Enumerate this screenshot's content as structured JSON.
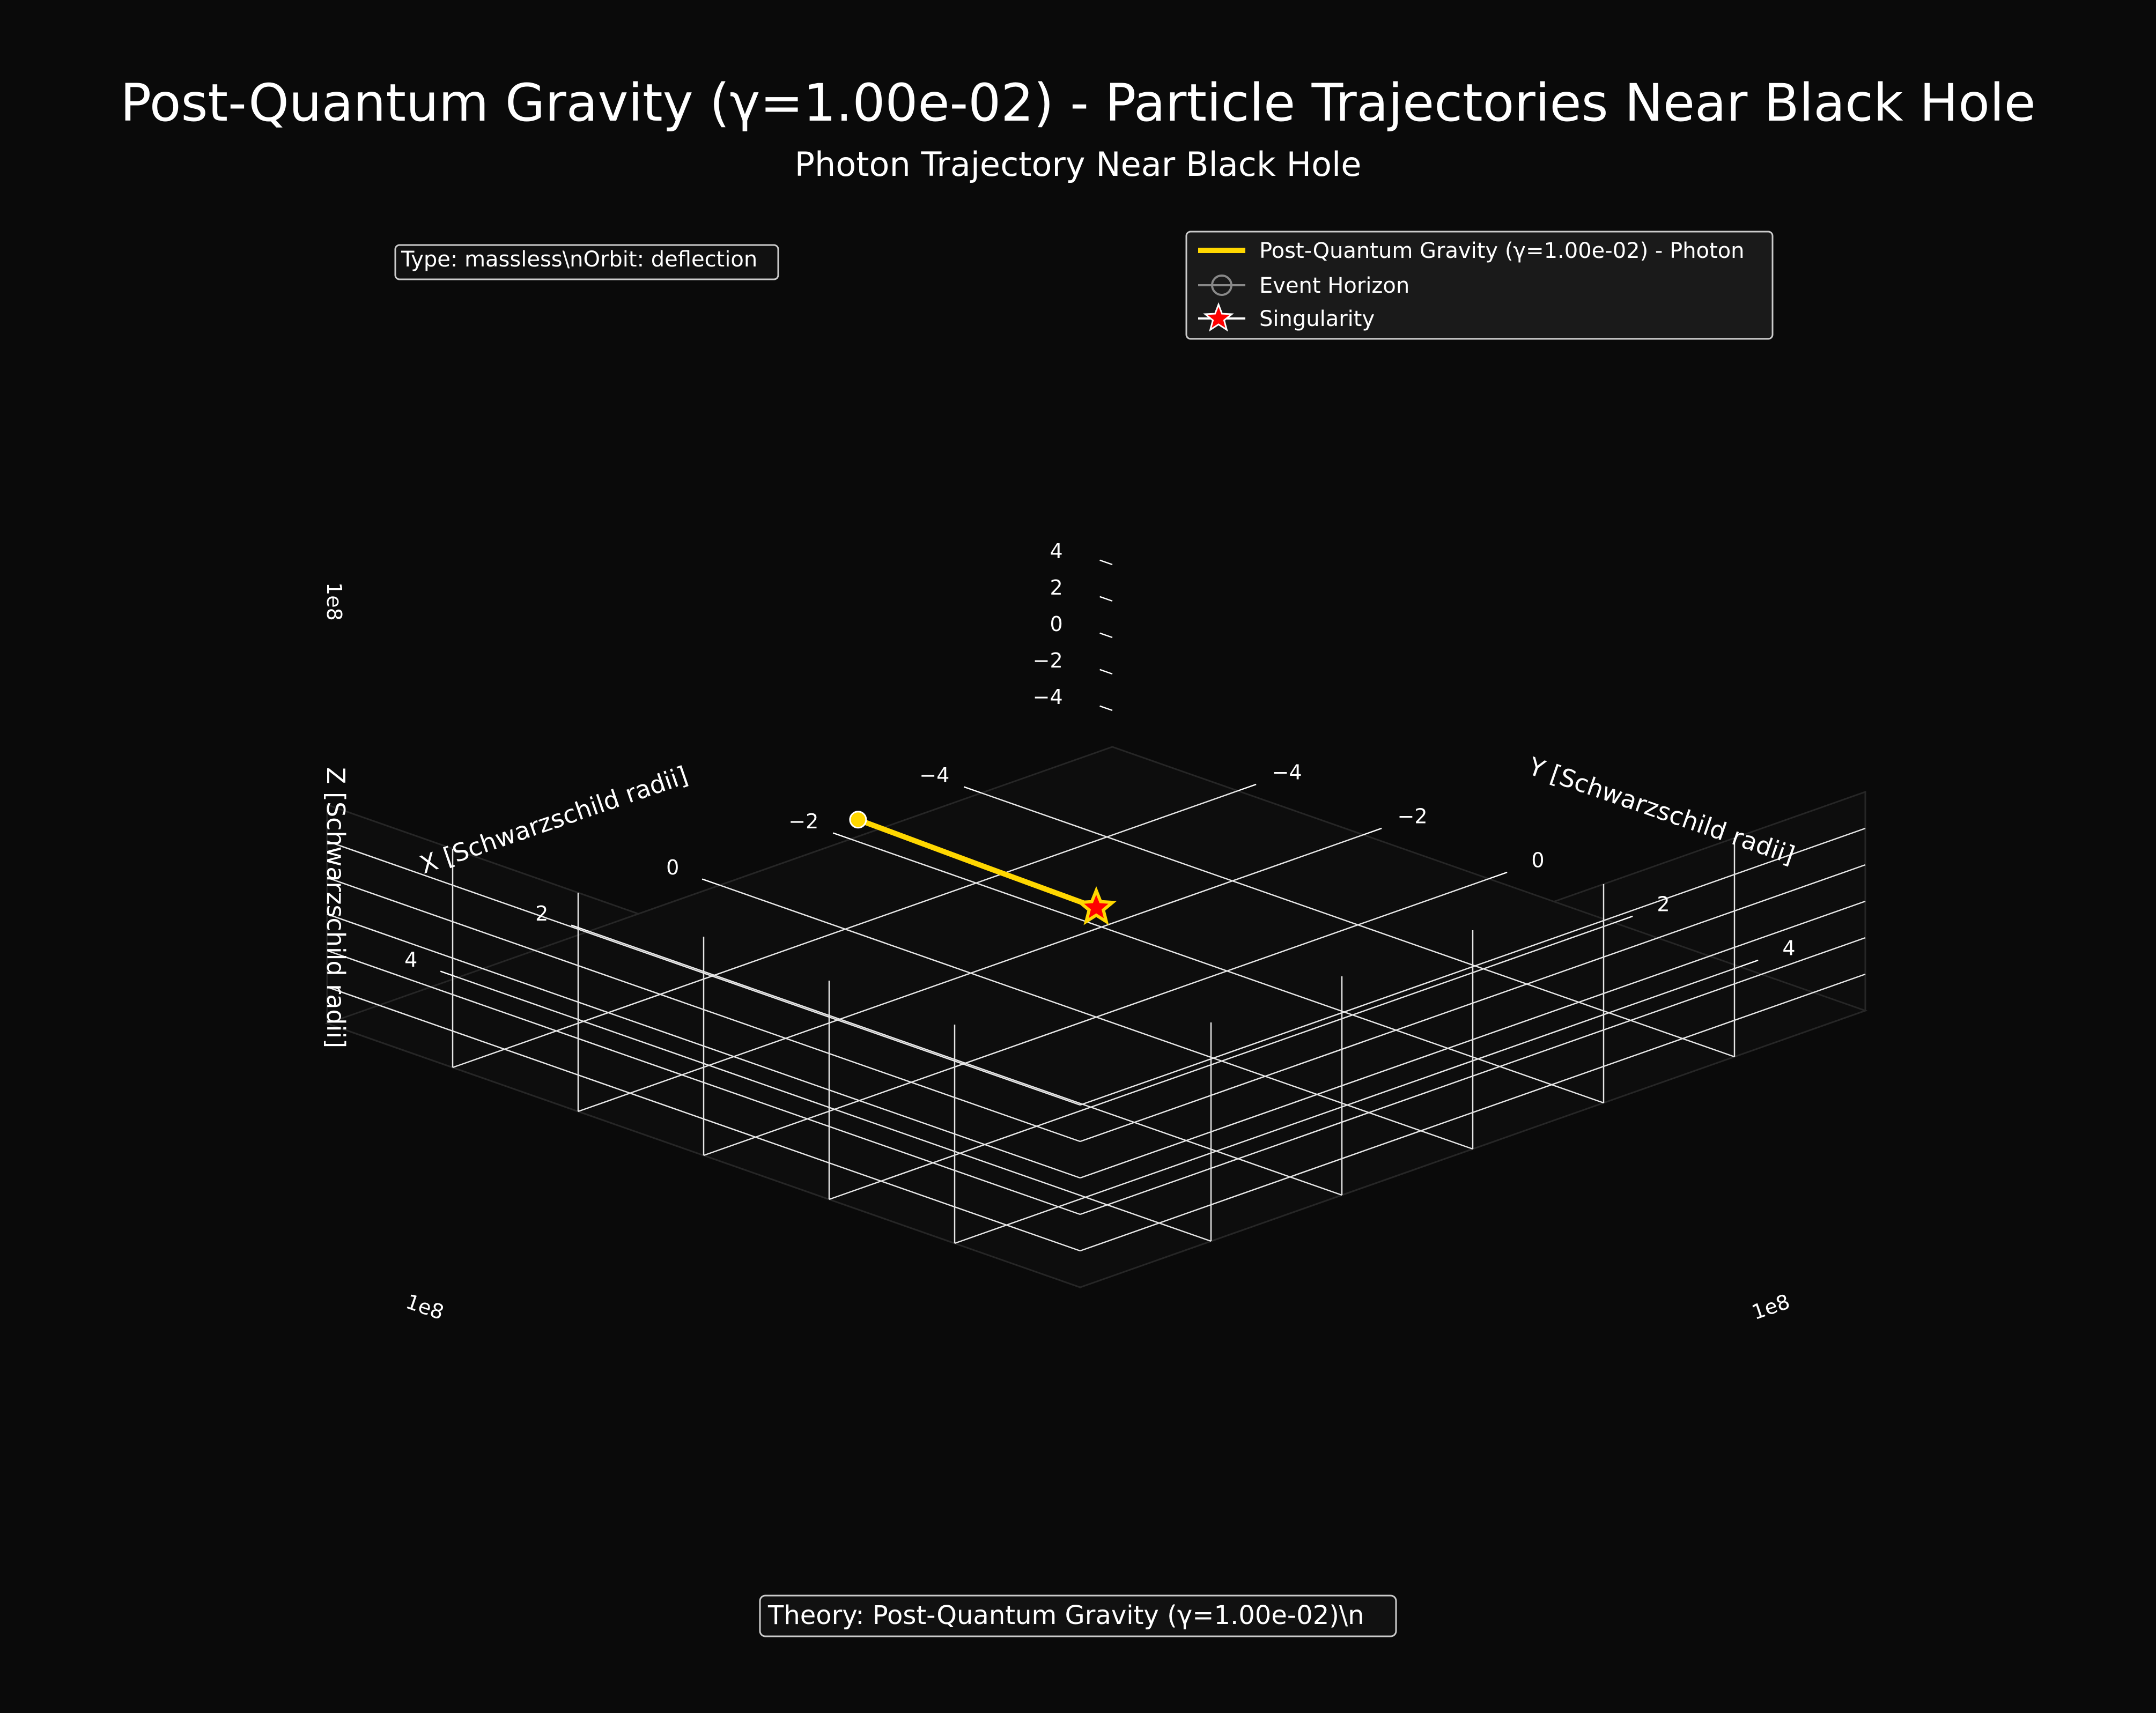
{
  "chart_data": {
    "type": "line3d",
    "title": "Post-Quantum Gravity (γ=1.00e-02) - Particle Trajectories Near Black Hole",
    "subtitle": "Photon Trajectory Near Black Hole",
    "xlabel": "X [Schwarzschild radii]",
    "ylabel": "Y [Schwarzschild radii]",
    "zlabel": "Z [Schwarzschild radii]",
    "x_ticks": [
      "−4",
      "−2",
      "0",
      "2",
      "4"
    ],
    "y_ticks": [
      "−4",
      "−2",
      "0",
      "2",
      "4"
    ],
    "z_ticks": [
      "−4",
      "−2",
      "0",
      "2",
      "4"
    ],
    "axis_multiplier": "1e8",
    "xlim": [
      -6,
      6
    ],
    "ylim": [
      -6,
      6
    ],
    "zlim": [
      -6,
      6
    ],
    "grid": true,
    "legend_position": "top-right",
    "series": [
      {
        "name": "Post-Quantum Gravity (γ=1.00e-02) - Photon",
        "color": "#ffd700",
        "x": [
          -0.1,
          -0.04,
          0
        ],
        "y": [
          -3.9,
          -1.8,
          0
        ],
        "z": [
          0,
          0,
          0
        ]
      }
    ],
    "event_horizon": {
      "name": "Event Horizon",
      "color": "#888888"
    },
    "singularity": {
      "name": "Singularity",
      "color": "#ff0000",
      "x": 0,
      "y": 0,
      "z": 0
    },
    "annotation_box": "Type: massless\\nOrbit: deflection",
    "footer_box": "Theory: Post-Quantum Gravity (γ=1.00e-02)\\n"
  }
}
